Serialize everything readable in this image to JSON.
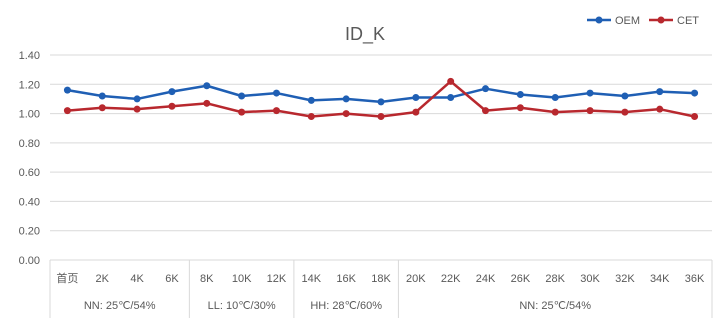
{
  "chart_data": {
    "type": "line",
    "title": "ID_K",
    "categories": [
      "首页",
      "2K",
      "4K",
      "6K",
      "8K",
      "10K",
      "12K",
      "14K",
      "16K",
      "18K",
      "20K",
      "22K",
      "24K",
      "26K",
      "28K",
      "30K",
      "32K",
      "34K",
      "36K"
    ],
    "groups": [
      {
        "label": "NN: 25℃/54%",
        "span": 4
      },
      {
        "label": "LL: 10℃/30%",
        "span": 3
      },
      {
        "label": "HH: 28℃/60%",
        "span": 3
      },
      {
        "label": "NN: 25℃/54%",
        "span": 9
      }
    ],
    "series": [
      {
        "name": "OEM",
        "color": "#1F5FB4",
        "values": [
          1.16,
          1.12,
          1.1,
          1.15,
          1.19,
          1.12,
          1.14,
          1.09,
          1.1,
          1.08,
          1.11,
          1.11,
          1.17,
          1.13,
          1.11,
          1.14,
          1.12,
          1.15,
          1.14
        ]
      },
      {
        "name": "CET",
        "color": "#B8282E",
        "values": [
          1.02,
          1.04,
          1.03,
          1.05,
          1.07,
          1.01,
          1.02,
          0.98,
          1.0,
          0.98,
          1.01,
          1.22,
          1.02,
          1.04,
          1.01,
          1.02,
          1.01,
          1.03,
          0.98
        ]
      }
    ],
    "yticks": [
      "0.00",
      "0.20",
      "0.40",
      "0.60",
      "0.80",
      "1.00",
      "1.20",
      "1.40"
    ],
    "ylim": [
      0,
      1.4
    ],
    "grid": true,
    "legend_position": "top-right"
  }
}
